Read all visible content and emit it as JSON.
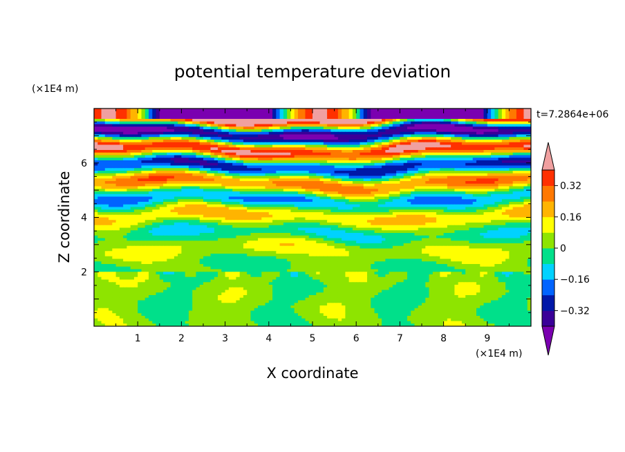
{
  "chart_data": {
    "type": "heatmap",
    "title": "potential temperature deviation",
    "xlabel": "X coordinate",
    "ylabel": "Z coordinate",
    "x_unit": "(×1E4 m)",
    "y_unit": "(×1E4 m)",
    "time_label": "t=7.2864e+06",
    "xlim": [
      0,
      10
    ],
    "ylim": [
      0,
      8
    ],
    "x_ticks": [
      "1",
      "2",
      "3",
      "4",
      "5",
      "6",
      "7",
      "8",
      "9"
    ],
    "y_ticks": [
      "2",
      "4",
      "6"
    ],
    "colorbar": {
      "levels": [
        -0.48,
        -0.4,
        -0.32,
        -0.24,
        -0.16,
        -0.08,
        0,
        0.08,
        0.16,
        0.24,
        0.32,
        0.4,
        0.48
      ],
      "tick_labels": [
        "0.32",
        "0.16",
        "0",
        "−0.16",
        "−0.32"
      ],
      "tick_values": [
        0.32,
        0.16,
        0,
        -0.16,
        -0.32
      ],
      "colors": [
        "#7a00b0",
        "#3a0098",
        "#0018a8",
        "#0064ff",
        "#00d2ff",
        "#00e08a",
        "#8ee400",
        "#ffff00",
        "#ffb400",
        "#ff7800",
        "#ff3000",
        "#f0a0a0"
      ],
      "extend": "both"
    },
    "grid": false,
    "legend": "right"
  }
}
